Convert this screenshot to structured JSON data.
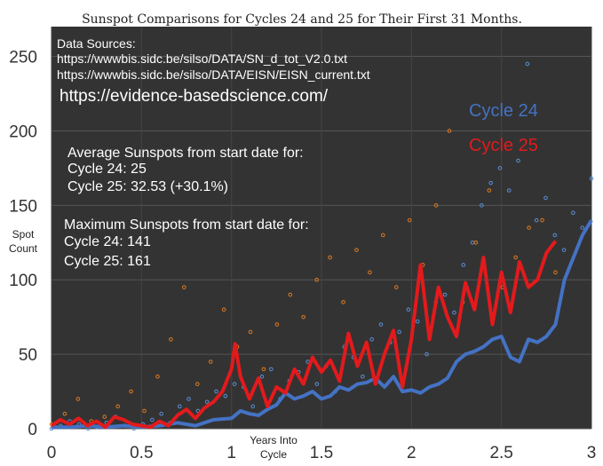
{
  "chart_data": {
    "type": "scatter",
    "title": "Sunspot Comparisons for Cycles 24 and 25 for Their First 31 Months.",
    "xlabel": [
      "Years Into",
      "Cycle"
    ],
    "ylabel": [
      "Spot",
      "Count"
    ],
    "xlim": [
      0,
      3
    ],
    "ylim": [
      0,
      270
    ],
    "x_ticks": [
      "0",
      "0.5",
      "1",
      "1.5",
      "2",
      "2.5",
      "3"
    ],
    "y_ticks": [
      "0",
      "50",
      "100",
      "150",
      "200",
      "250"
    ],
    "grid": true,
    "legend": "top-right",
    "sources": [
      "Data Sources:",
      "https://wwwbis.sidc.be/silso/DATA/SN_d_tot_V2.0.txt",
      "https://wwwbis.sidc.be/silso/DATA/EISN/EISN_current.txt"
    ],
    "website": "https://evidence-basedscience.com/",
    "average_box": [
      "Average Sunspots from start date for:",
      "Cycle 24: 25",
      "Cycle 25: 32.53 (+30.1%)"
    ],
    "maximum_box": [
      "Maximum Sunspots from start date for:",
      "Cycle 24: 141",
      "Cycle 25: 161"
    ],
    "series": [
      {
        "name": "Cycle 24",
        "color": "#4472c4",
        "dot_color": "#5b8fd6",
        "smoothed_x": [
          0,
          0.1,
          0.2,
          0.3,
          0.4,
          0.5,
          0.6,
          0.7,
          0.8,
          0.9,
          1.0,
          1.05,
          1.1,
          1.15,
          1.2,
          1.25,
          1.3,
          1.35,
          1.4,
          1.45,
          1.5,
          1.55,
          1.6,
          1.65,
          1.7,
          1.75,
          1.8,
          1.85,
          1.9,
          1.95,
          2.0,
          2.05,
          2.1,
          2.15,
          2.2,
          2.25,
          2.3,
          2.35,
          2.4,
          2.45,
          2.5,
          2.55,
          2.6,
          2.65,
          2.7,
          2.75,
          2.8,
          2.85,
          2.9,
          2.95,
          3.0
        ],
        "smoothed_y": [
          1,
          1,
          2,
          1,
          2,
          1,
          2,
          4,
          2,
          6,
          7,
          12,
          10,
          9,
          13,
          16,
          24,
          20,
          22,
          25,
          20,
          22,
          28,
          26,
          30,
          31,
          34,
          28,
          35,
          25,
          26,
          24,
          28,
          30,
          34,
          45,
          50,
          52,
          55,
          60,
          62,
          48,
          45,
          60,
          58,
          62,
          70,
          100,
          115,
          130,
          140
        ],
        "scatter_y": [
          0,
          2,
          5,
          3,
          0,
          1,
          4,
          8,
          2,
          0,
          3,
          6,
          10,
          4,
          15,
          20,
          12,
          18,
          25,
          22,
          30,
          28,
          15,
          35,
          40,
          20,
          32,
          38,
          45,
          30,
          42,
          25,
          55,
          48,
          35,
          60,
          70,
          58,
          65,
          80,
          72,
          50,
          85,
          90,
          78,
          110,
          125,
          150,
          165,
          175,
          160,
          180,
          245,
          140,
          155,
          130,
          120,
          145,
          135,
          168
        ]
      },
      {
        "name": "Cycle 25",
        "color": "#e31a1c",
        "dot_color": "#e07b20",
        "smoothed_x": [
          0,
          0.05,
          0.1,
          0.15,
          0.2,
          0.25,
          0.3,
          0.35,
          0.4,
          0.45,
          0.5,
          0.55,
          0.6,
          0.65,
          0.7,
          0.75,
          0.8,
          0.85,
          0.9,
          0.95,
          1.0,
          1.02,
          1.05,
          1.1,
          1.15,
          1.2,
          1.25,
          1.3,
          1.35,
          1.4,
          1.45,
          1.5,
          1.55,
          1.6,
          1.65,
          1.7,
          1.75,
          1.8,
          1.85,
          1.9,
          1.95,
          2.0,
          2.05,
          2.1,
          2.15,
          2.2,
          2.25,
          2.3,
          2.35,
          2.4,
          2.45,
          2.5,
          2.55,
          2.6,
          2.65,
          2.7,
          2.75,
          2.8
        ],
        "smoothed_y": [
          2,
          6,
          3,
          7,
          2,
          5,
          1,
          8,
          6,
          3,
          2,
          1,
          5,
          2,
          9,
          13,
          7,
          14,
          18,
          25,
          40,
          57,
          35,
          20,
          34,
          15,
          28,
          24,
          40,
          30,
          48,
          38,
          46,
          32,
          64,
          42,
          58,
          30,
          50,
          66,
          28,
          60,
          110,
          60,
          95,
          75,
          62,
          98,
          80,
          115,
          70,
          105,
          78,
          112,
          95,
          100,
          118,
          126
        ],
        "scatter_y": [
          3,
          10,
          20,
          5,
          8,
          15,
          25,
          12,
          35,
          60,
          95,
          30,
          45,
          80,
          55,
          65,
          40,
          70,
          90,
          75,
          100,
          115,
          85,
          120,
          105,
          130,
          95,
          140,
          110,
          150,
          200,
          85,
          125,
          160,
          95,
          115,
          135,
          140,
          105
        ]
      }
    ]
  }
}
